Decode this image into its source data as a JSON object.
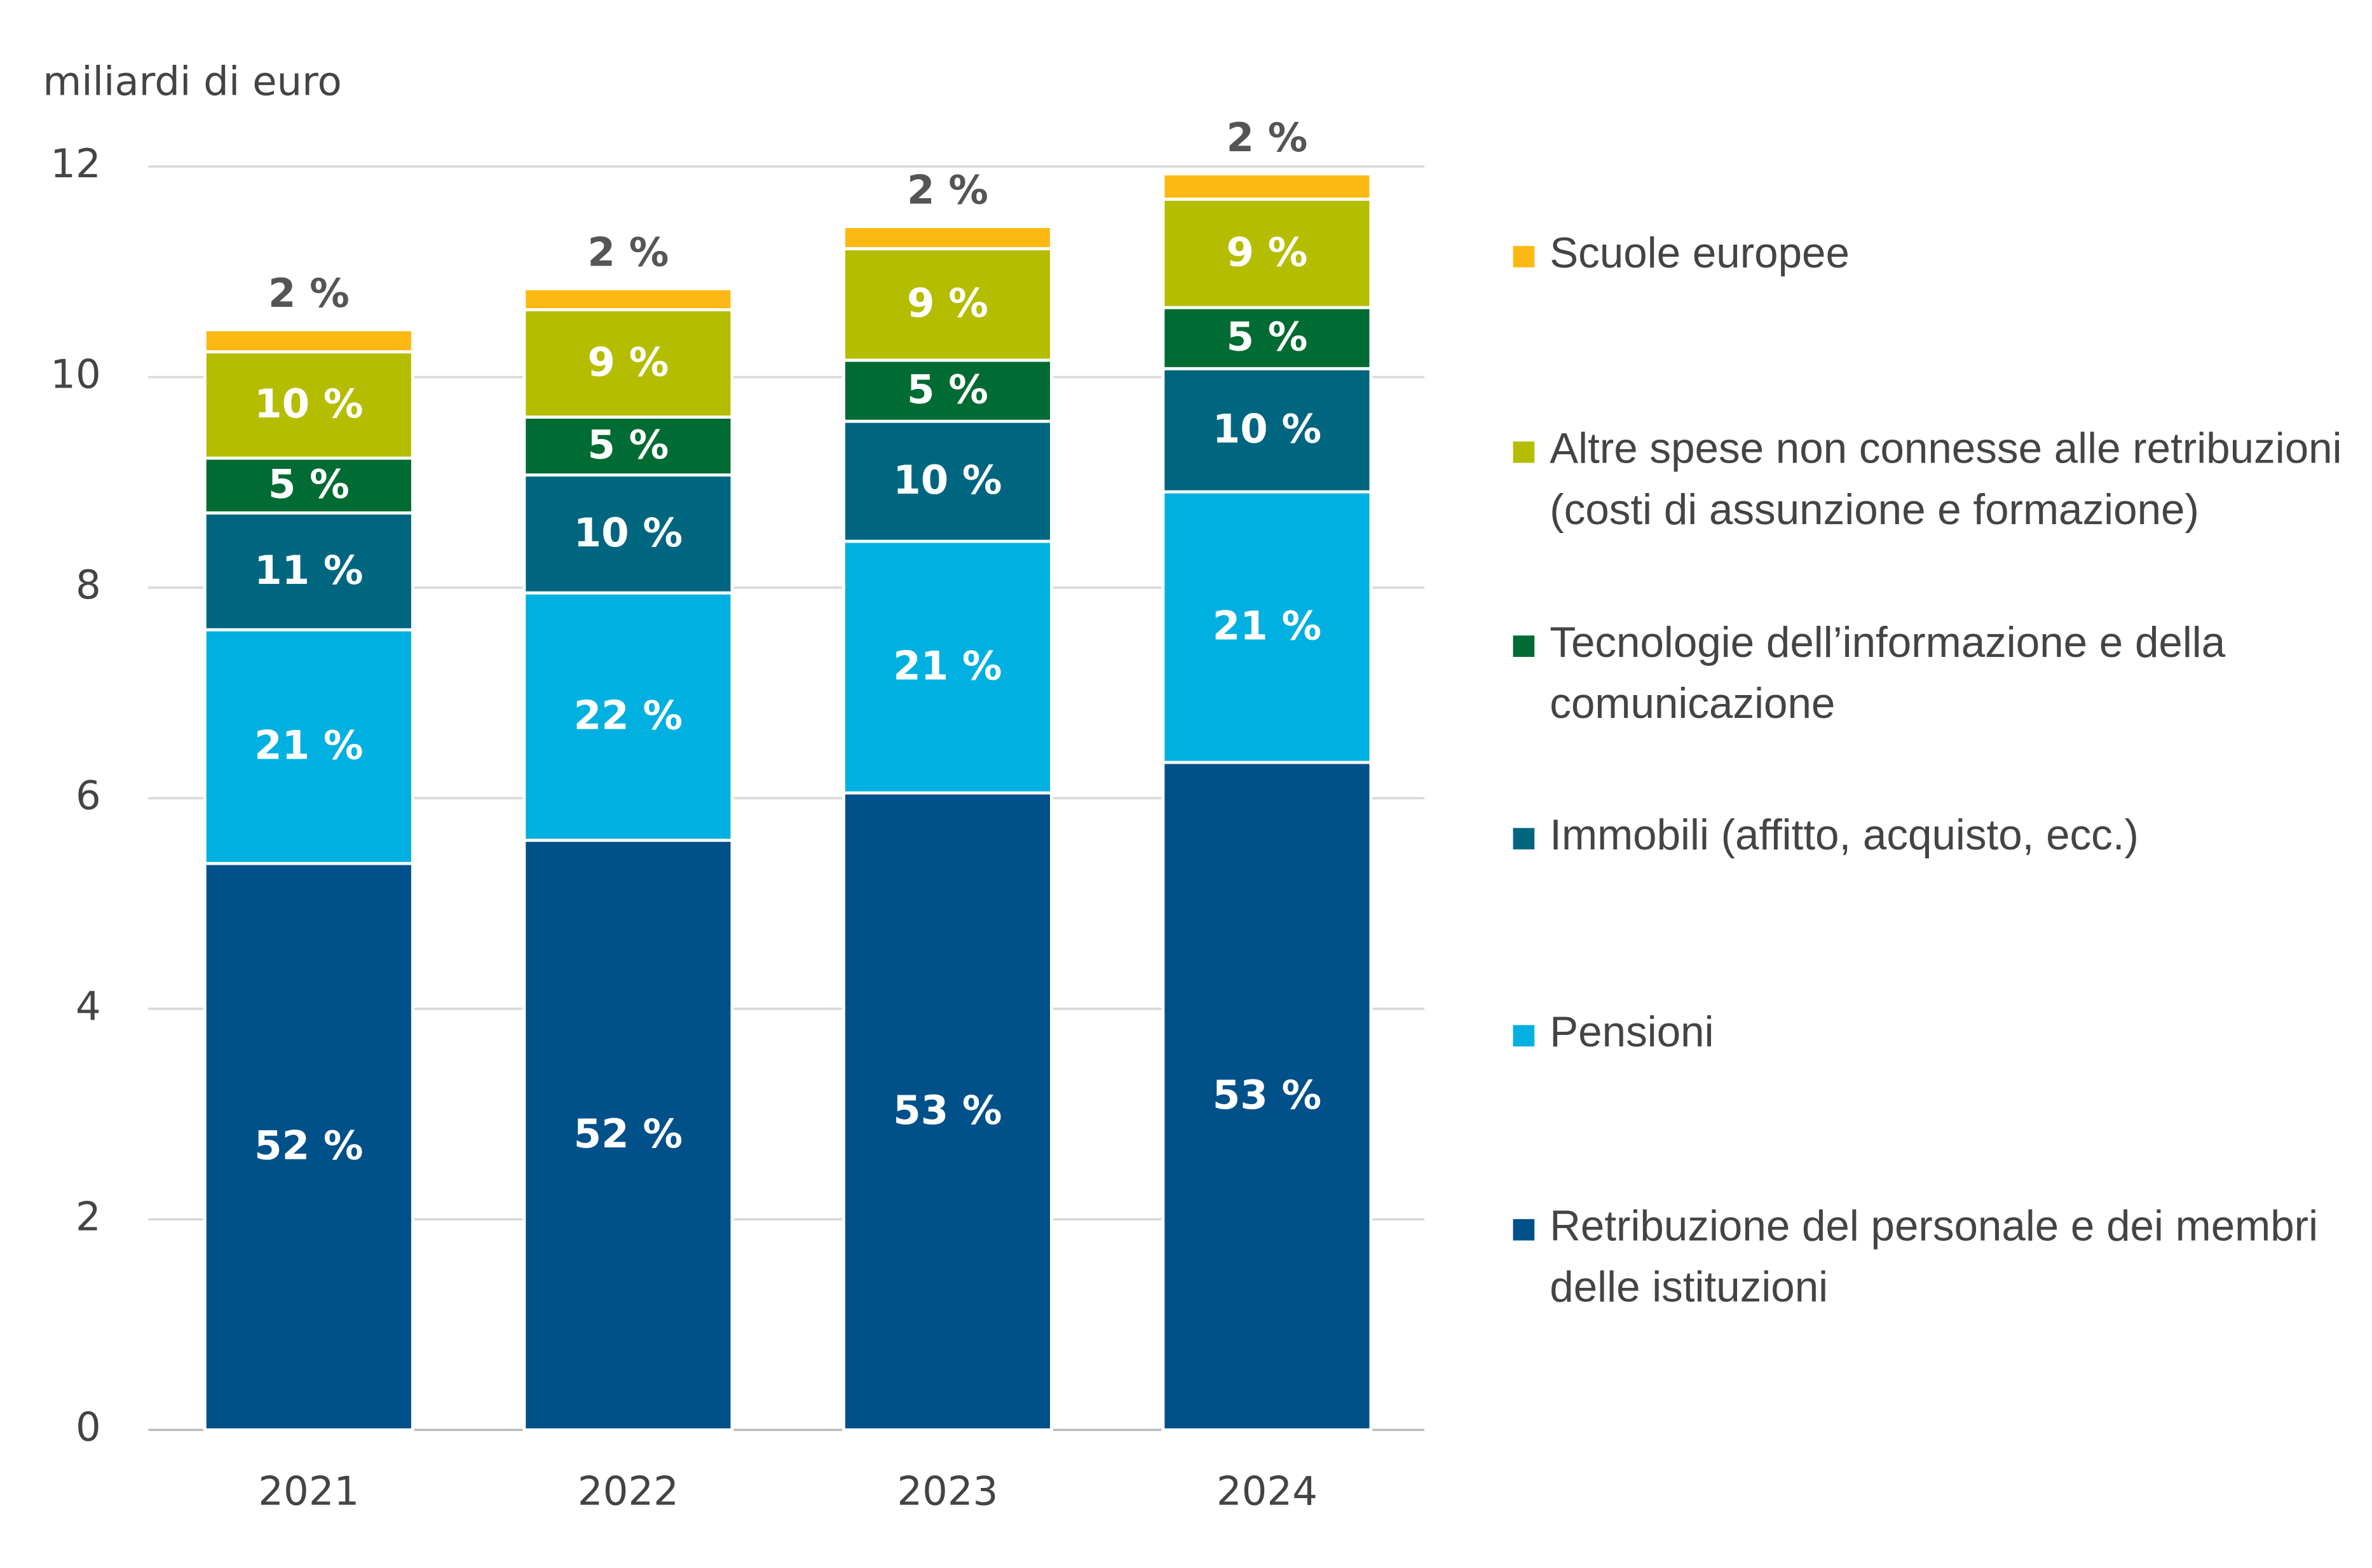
{
  "chart_data": {
    "type": "stacked-bar",
    "y_axis_label": "miliardi di euro",
    "categories": [
      "2021",
      "2022",
      "2023",
      "2024"
    ],
    "ylim": [
      0,
      12
    ],
    "yticks": [
      0,
      2,
      4,
      6,
      8,
      10,
      12
    ],
    "grid": true,
    "series": [
      {
        "name": "Retribuzione del personale e dei membri delle istituzioni",
        "color": "#00508a",
        "values": [
          5.38,
          5.6,
          6.05,
          6.34
        ],
        "share_labels": [
          "52 %",
          "52 %",
          "53 %",
          "53 %"
        ]
      },
      {
        "name": "Pensioni",
        "color": "#00b0e0",
        "values": [
          2.22,
          2.35,
          2.39,
          2.57
        ],
        "share_labels": [
          "21 %",
          "22 %",
          "21 %",
          "21 %"
        ]
      },
      {
        "name": "Immobili (affitto, acquisto, ecc.)",
        "color": "#006680",
        "values": [
          1.11,
          1.12,
          1.14,
          1.17
        ],
        "share_labels": [
          "11 %",
          "10 %",
          "10 %",
          "10 %"
        ]
      },
      {
        "name": "Tecnologie dell’informazione e della comunicazione",
        "color": "#006b33",
        "values": [
          0.52,
          0.55,
          0.58,
          0.58
        ],
        "share_labels": [
          "5 %",
          "5 %",
          "5 %",
          "5 %"
        ]
      },
      {
        "name": "Altre spese non connesse alle retribuzioni (costi di assunzione e formazione)",
        "color": "#b5bd00",
        "values": [
          1.01,
          1.02,
          1.06,
          1.03
        ],
        "share_labels": [
          "10 %",
          "9 %",
          "9 %",
          "9 %"
        ]
      },
      {
        "name": "Scuole europee",
        "color": "#fdb913",
        "values": [
          0.21,
          0.2,
          0.21,
          0.24
        ],
        "share_labels": [
          "2 %",
          "2 %",
          "2 %",
          "2 %"
        ]
      }
    ]
  }
}
